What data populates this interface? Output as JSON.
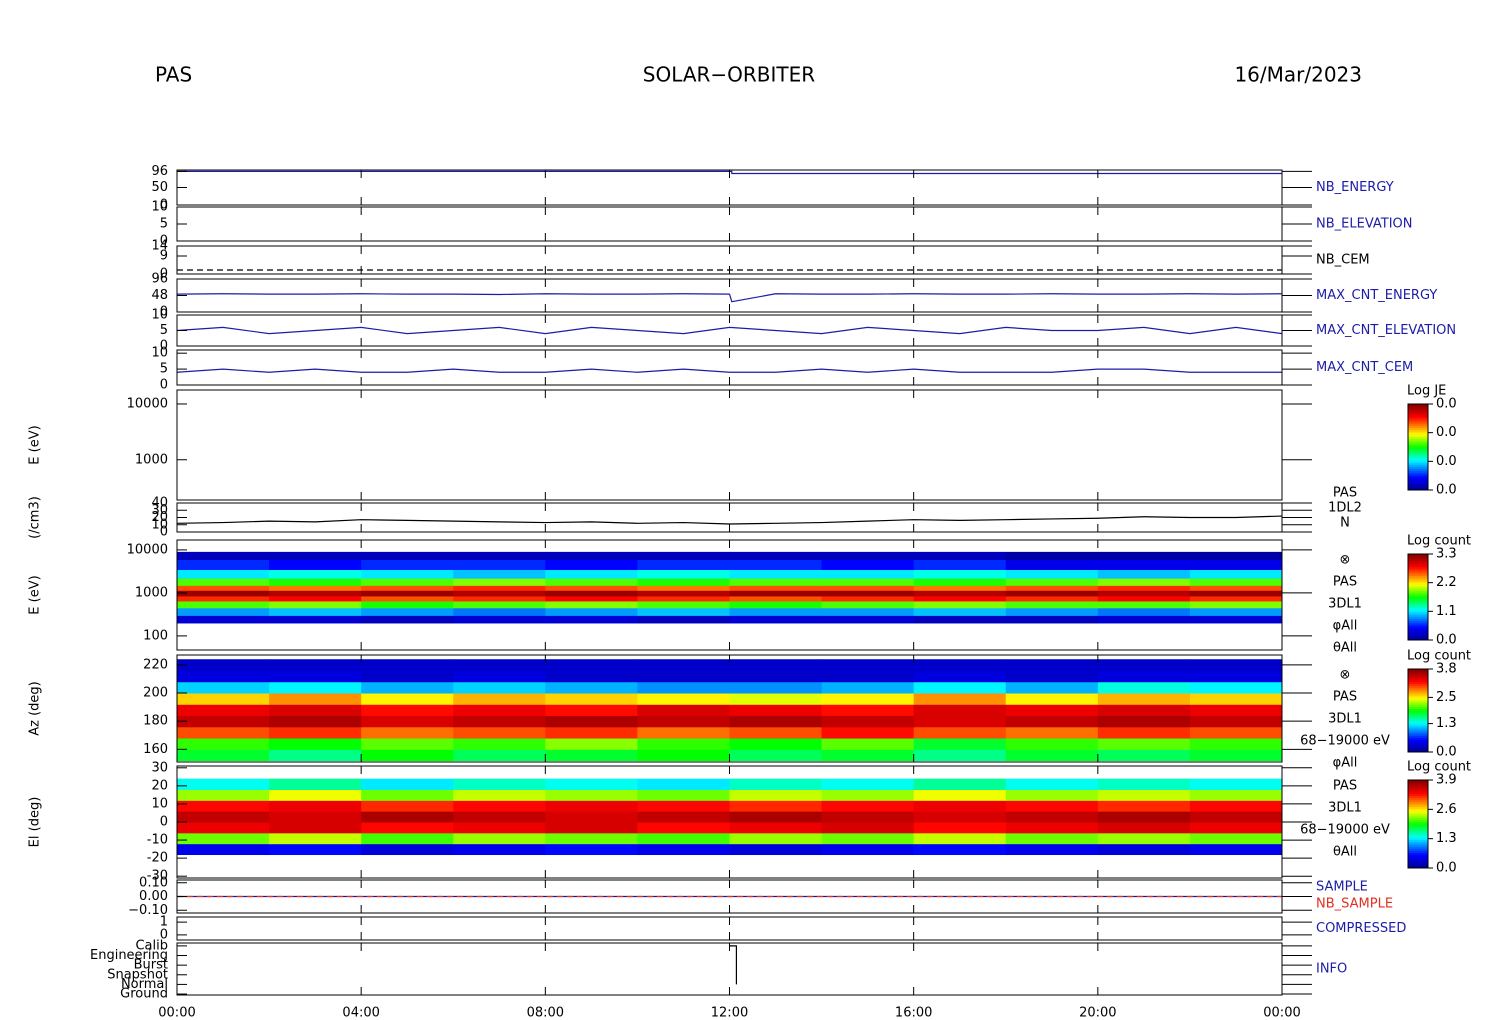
{
  "header": {
    "left": "PAS",
    "center": "SOLAR−ORBITER",
    "right": "16/Mar/2023"
  },
  "chart_data": [
    {
      "type": "line",
      "ylim": [
        0,
        100
      ],
      "yticks": [
        0,
        50,
        96
      ],
      "series": [
        {
          "name": "NB_ENERGY",
          "color": "#1c1ca8",
          "x": [
            0,
            12.05,
            12.05,
            24
          ],
          "values": [
            96,
            96,
            90,
            90
          ]
        }
      ]
    },
    {
      "type": "line",
      "label": "NB_ELEVATION",
      "ylim": [
        0,
        10
      ],
      "yticks": [
        0,
        5,
        10
      ],
      "series": []
    },
    {
      "type": "line",
      "ylim": [
        0,
        14
      ],
      "yticks": [
        0,
        9,
        14
      ],
      "dashed": true,
      "series": [
        {
          "name": "NB_CEM",
          "color": "#000000",
          "x": [
            0,
            24
          ],
          "values": [
            2,
            2
          ]
        }
      ]
    },
    {
      "type": "line",
      "ylim": [
        0,
        96
      ],
      "yticks": [
        0,
        48,
        96
      ],
      "series": [
        {
          "name": "MAX_CNT_ENERGY",
          "color": "#1c1ca8",
          "x": [
            0,
            1,
            2,
            3,
            4,
            5,
            6,
            7,
            8,
            9,
            10,
            11,
            12,
            12.05,
            13,
            14,
            15,
            16,
            17,
            18,
            19,
            20,
            21,
            22,
            23,
            24
          ],
          "values": [
            52,
            53,
            52,
            52,
            53,
            52,
            52,
            51,
            53,
            52,
            52,
            53,
            52,
            30,
            53,
            52,
            52,
            53,
            52,
            52,
            53,
            52,
            52,
            53,
            52,
            53
          ]
        }
      ]
    },
    {
      "type": "line",
      "ylim": [
        0,
        10
      ],
      "yticks": [
        0,
        5,
        10
      ],
      "series": [
        {
          "name": "MAX_CNT_ELEVATION",
          "color": "#1c1ca8",
          "x": [
            0,
            1,
            2,
            3,
            4,
            5,
            6,
            7,
            8,
            9,
            10,
            11,
            12,
            13,
            14,
            15,
            16,
            17,
            18,
            19,
            20,
            21,
            22,
            23,
            24
          ],
          "values": [
            5,
            6,
            4,
            5,
            6,
            4,
            5,
            6,
            4,
            6,
            5,
            4,
            6,
            5,
            4,
            6,
            5,
            4,
            6,
            5,
            5,
            6,
            4,
            6,
            4
          ]
        }
      ]
    },
    {
      "type": "line",
      "ylim": [
        0,
        11
      ],
      "yticks": [
        0,
        5,
        10
      ],
      "series": [
        {
          "name": "MAX_CNT_CEM",
          "color": "#1c1ca8",
          "x": [
            0,
            1,
            2,
            3,
            4,
            5,
            6,
            7,
            8,
            9,
            10,
            11,
            12,
            13,
            14,
            15,
            16,
            17,
            18,
            19,
            20,
            21,
            22,
            23,
            24
          ],
          "values": [
            4,
            5,
            4,
            5,
            4,
            4,
            5,
            4,
            4,
            5,
            4,
            5,
            4,
            4,
            5,
            4,
            5,
            4,
            4,
            4,
            5,
            5,
            4,
            4,
            4
          ]
        }
      ]
    },
    {
      "type": "spectrogram",
      "ylabel": "E (eV)",
      "log": true,
      "ylim": [
        190,
        17800
      ],
      "yticks": [
        1000,
        10000
      ],
      "colorbar_title": "Log JE",
      "zlim": [
        0,
        0.03
      ],
      "zticks": [
        {
          "value": 0,
          "label": "0.0"
        },
        {
          "value": 0.01,
          "label": "0.0"
        },
        {
          "value": 0.02,
          "label": "0.0"
        },
        {
          "value": 0.03,
          "label": "0.0"
        }
      ]
    },
    {
      "type": "line",
      "ylabel": "(/cm3)",
      "ylim": [
        0,
        40
      ],
      "yticks": [
        0,
        10,
        20,
        30,
        40
      ],
      "labels": [
        "PAS",
        "1DL2",
        "N"
      ],
      "series": [
        {
          "color": "#000000",
          "x": [
            0,
            1,
            2,
            3,
            4,
            5,
            6,
            7,
            8,
            9,
            10,
            11,
            12,
            13,
            14,
            15,
            16,
            17,
            18,
            19,
            20,
            21,
            22,
            23,
            24
          ],
          "values": [
            12,
            13,
            15,
            14,
            17,
            16,
            15,
            14,
            13,
            14,
            12,
            13,
            11,
            12,
            13,
            15,
            17,
            16,
            17,
            18,
            19,
            21,
            20,
            20,
            22
          ]
        }
      ]
    },
    {
      "type": "spectrogram",
      "ylabel": "E (eV)",
      "log": true,
      "ylim": [
        47,
        17000
      ],
      "yticks": [
        100,
        1000,
        10000
      ],
      "labels": [
        "⊗",
        "PAS",
        "3DL1",
        "φAll",
        "θAll"
      ],
      "colorbar_title": "Log count",
      "zlim": [
        0,
        3.3
      ],
      "zticks": [
        {
          "value": 0,
          "label": "0.0"
        },
        1.1,
        2.2,
        3.3
      ],
      "x": [
        0,
        2,
        4,
        6,
        8,
        10,
        12,
        14,
        16,
        18,
        20,
        22,
        24
      ],
      "bins": [
        200,
        300,
        450,
        650,
        850,
        1150,
        1500,
        2200,
        3500,
        6000,
        9000
      ],
      "z": [
        [
          0.3,
          0.3,
          0.2,
          0.3,
          0.3,
          0.2,
          0.3,
          0.3,
          0.2,
          0.2,
          0.3,
          0.3
        ],
        [
          0.9,
          1.0,
          0.9,
          0.8,
          0.9,
          1.0,
          0.9,
          0.9,
          1.0,
          0.9,
          0.8,
          0.9
        ],
        [
          1.8,
          1.9,
          1.7,
          1.8,
          1.9,
          1.8,
          1.7,
          1.8,
          1.9,
          1.8,
          1.8,
          1.9
        ],
        [
          2.7,
          2.8,
          2.6,
          2.7,
          2.8,
          2.7,
          2.6,
          2.7,
          2.8,
          2.7,
          2.8,
          2.7
        ],
        [
          3.2,
          3.1,
          3.2,
          3.1,
          3.2,
          3.1,
          3.2,
          3.2,
          3.1,
          3.2,
          3.1,
          3.2
        ],
        [
          2.6,
          2.5,
          2.6,
          2.7,
          2.6,
          2.5,
          2.6,
          2.6,
          2.5,
          2.6,
          2.7,
          2.6
        ],
        [
          1.8,
          1.7,
          1.8,
          1.9,
          1.8,
          1.7,
          1.8,
          1.8,
          1.7,
          1.8,
          1.9,
          1.8
        ],
        [
          1.1,
          1.2,
          1.1,
          1.0,
          1.1,
          1.2,
          1.1,
          1.1,
          1.2,
          1.1,
          1.0,
          1.1
        ],
        [
          0.6,
          0.5,
          0.6,
          0.6,
          0.5,
          0.6,
          0.6,
          0.5,
          0.6,
          0.4,
          0.4,
          0.4
        ],
        [
          0.2,
          0.2,
          0.2,
          0.2,
          0.2,
          0.2,
          0.2,
          0.2,
          0.2,
          0.1,
          0.1,
          0.1
        ]
      ]
    },
    {
      "type": "spectrogram",
      "ylabel": "Az (deg)",
      "ylim": [
        151,
        227
      ],
      "yticks": [
        160,
        180,
        200,
        220
      ],
      "labels": [
        "⊗",
        "PAS",
        "3DL1",
        "68−19000 eV",
        "φAll"
      ],
      "colorbar_title": "Log count",
      "zlim": [
        0,
        3.8
      ],
      "zticks": [
        {
          "value": 0,
          "label": "0.0"
        },
        2.5,
        1.3,
        3.8
      ],
      "x": [
        0,
        2,
        4,
        6,
        8,
        10,
        12,
        14,
        16,
        18,
        20,
        22,
        24
      ],
      "bins": [
        152,
        160,
        168,
        176,
        184,
        192,
        200,
        208,
        216,
        224
      ],
      "z": [
        [
          1.8,
          1.6,
          1.9,
          1.7,
          1.8,
          1.9,
          1.7,
          1.8,
          1.6,
          1.8,
          1.7,
          1.8
        ],
        [
          2.0,
          1.9,
          2.1,
          2.0,
          2.2,
          2.0,
          1.9,
          2.1,
          1.8,
          2.0,
          2.1,
          2.0
        ],
        [
          3.0,
          3.1,
          2.9,
          3.0,
          3.1,
          2.9,
          3.0,
          3.2,
          3.0,
          2.9,
          3.1,
          3.0
        ],
        [
          3.5,
          3.6,
          3.4,
          3.5,
          3.6,
          3.5,
          3.6,
          3.5,
          3.4,
          3.5,
          3.6,
          3.5
        ],
        [
          3.3,
          3.4,
          3.2,
          3.3,
          3.2,
          3.4,
          3.3,
          3.2,
          3.4,
          3.3,
          3.4,
          3.3
        ],
        [
          2.6,
          2.8,
          2.5,
          2.7,
          2.6,
          2.5,
          2.4,
          2.5,
          2.8,
          2.5,
          2.7,
          2.6
        ],
        [
          1.2,
          1.3,
          1.1,
          1.2,
          1.1,
          1.0,
          1.0,
          1.1,
          1.3,
          1.1,
          1.4,
          1.3
        ],
        [
          0.4,
          0.4,
          0.3,
          0.4,
          0.3,
          0.3,
          0.3,
          0.3,
          0.4,
          0.3,
          0.4,
          0.4
        ],
        [
          0.3,
          0.3,
          0.3,
          0.3,
          0.3,
          0.3,
          0.3,
          0.3,
          0.3,
          0.3,
          0.3,
          0.3
        ]
      ]
    },
    {
      "type": "spectrogram",
      "ylabel": "El (deg)",
      "ylim": [
        -31,
        31
      ],
      "yticks": [
        -30,
        -20,
        -10,
        0,
        10,
        20,
        30
      ],
      "labels": [
        "PAS",
        "3DL1",
        "68−19000 eV",
        "θAll"
      ],
      "colorbar_title": "Log count",
      "zlim": [
        0,
        3.9
      ],
      "zticks": [
        {
          "value": 0,
          "label": "0.0"
        },
        1.3,
        2.6,
        3.9
      ],
      "x": [
        0,
        2,
        4,
        6,
        8,
        10,
        12,
        14,
        16,
        18,
        20,
        22,
        24
      ],
      "bins": [
        -18,
        -12,
        -6,
        0,
        6,
        12,
        18,
        24
      ],
      "z": [
        [
          0.5,
          0.6,
          0.4,
          0.5,
          0.6,
          0.5,
          0.4,
          0.5,
          0.6,
          0.5,
          0.4,
          0.5
        ],
        [
          2.2,
          2.4,
          2.1,
          2.3,
          2.2,
          2.1,
          2.3,
          2.2,
          2.4,
          2.2,
          2.3,
          2.2
        ],
        [
          3.4,
          3.5,
          3.3,
          3.4,
          3.5,
          3.3,
          3.4,
          3.5,
          3.3,
          3.4,
          3.5,
          3.4
        ],
        [
          3.6,
          3.5,
          3.7,
          3.6,
          3.5,
          3.6,
          3.7,
          3.6,
          3.5,
          3.6,
          3.7,
          3.6
        ],
        [
          3.3,
          3.4,
          3.2,
          3.3,
          3.4,
          3.3,
          3.2,
          3.3,
          3.4,
          3.3,
          3.2,
          3.3
        ],
        [
          2.3,
          2.5,
          2.2,
          2.4,
          2.3,
          2.2,
          2.4,
          2.3,
          2.5,
          2.3,
          2.4,
          2.3
        ],
        [
          1.4,
          1.6,
          1.3,
          1.5,
          1.4,
          1.3,
          1.5,
          1.4,
          1.6,
          1.4,
          1.5,
          1.4
        ]
      ]
    },
    {
      "type": "line",
      "ylim": [
        -0.12,
        0.12
      ],
      "yticks": [
        {
          "value": -0.1,
          "label": "−0.10"
        },
        {
          "value": 0,
          "label": "0.00"
        },
        {
          "value": 0.1,
          "label": "0.10"
        }
      ],
      "series": [
        {
          "name": "SAMPLE",
          "color": "#1c1ca8",
          "x": [
            0,
            24
          ],
          "values": [
            0,
            0
          ]
        },
        {
          "name": "NB_SAMPLE",
          "color": "#e03020",
          "dashed": true,
          "x": [
            0,
            24
          ],
          "values": [
            0,
            0
          ]
        }
      ]
    },
    {
      "type": "line",
      "label": "COMPRESSED",
      "ylim": [
        -0.4,
        1.4
      ],
      "yticks": [
        0,
        1
      ],
      "series": []
    },
    {
      "type": "line",
      "label": "INFO",
      "ylim": [
        -0.1,
        5.3
      ],
      "yticks": [
        {
          "value": 5,
          "label": "Calib"
        },
        {
          "value": 4,
          "label": "Engineering"
        },
        {
          "value": 3,
          "label": "Burst"
        },
        {
          "value": 2,
          "label": "Snapshot"
        },
        {
          "value": 1,
          "label": "Normal"
        },
        {
          "value": 0,
          "label": "Ground"
        }
      ],
      "xlim": [
        0,
        24
      ],
      "xticks": [
        {
          "value": 0,
          "label": "00:00"
        },
        {
          "value": 4,
          "label": "04:00"
        },
        {
          "value": 8,
          "label": "08:00"
        },
        {
          "value": 12,
          "label": "12:00"
        },
        {
          "value": 16,
          "label": "16:00"
        },
        {
          "value": 20,
          "label": "20:00"
        },
        {
          "value": 24,
          "label": "00:00"
        }
      ],
      "series": [
        {
          "color": "#000000",
          "x": [
            12,
            12.15,
            12.15
          ],
          "values": [
            5,
            5,
            1
          ]
        }
      ]
    }
  ]
}
